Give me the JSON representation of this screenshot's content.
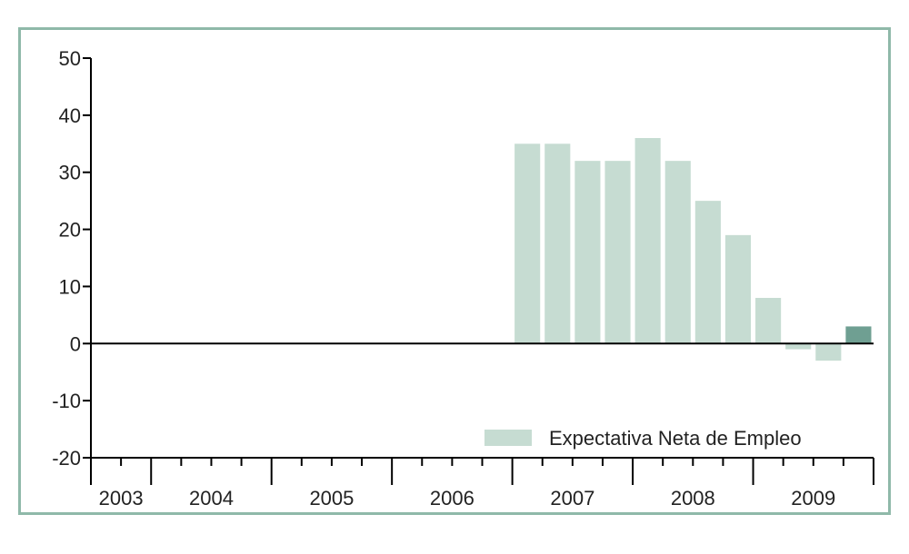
{
  "chart_data": {
    "type": "bar",
    "title": "",
    "xlabel": "",
    "ylabel": "",
    "ylim": [
      -20,
      50
    ],
    "yticks": [
      50,
      40,
      30,
      20,
      10,
      0,
      -10,
      -20
    ],
    "years": [
      "2003",
      "2004",
      "2005",
      "2006",
      "2007",
      "2008",
      "2009"
    ],
    "quarters_per_year": [
      2,
      4,
      4,
      4,
      4,
      4,
      4
    ],
    "series": [
      {
        "name": "Expectativa Neta de Empleo",
        "points": [
          {
            "year": "2007",
            "quarter": 1,
            "value": 35
          },
          {
            "year": "2007",
            "quarter": 2,
            "value": 35
          },
          {
            "year": "2007",
            "quarter": 3,
            "value": 32
          },
          {
            "year": "2007",
            "quarter": 4,
            "value": 32
          },
          {
            "year": "2008",
            "quarter": 1,
            "value": 36
          },
          {
            "year": "2008",
            "quarter": 2,
            "value": 32
          },
          {
            "year": "2008",
            "quarter": 3,
            "value": 25
          },
          {
            "year": "2008",
            "quarter": 4,
            "value": 19
          },
          {
            "year": "2009",
            "quarter": 1,
            "value": 8
          },
          {
            "year": "2009",
            "quarter": 2,
            "value": -1
          },
          {
            "year": "2009",
            "quarter": 3,
            "value": -3
          },
          {
            "year": "2009",
            "quarter": 4,
            "value": 3,
            "highlight": true
          }
        ]
      }
    ],
    "legend_position": "bottom-right",
    "grid": false,
    "colors": {
      "bar": "#c6dcd2",
      "bar_highlight": "#6f9f92",
      "frame": "#8fb9a9",
      "axis": "#000000"
    }
  }
}
